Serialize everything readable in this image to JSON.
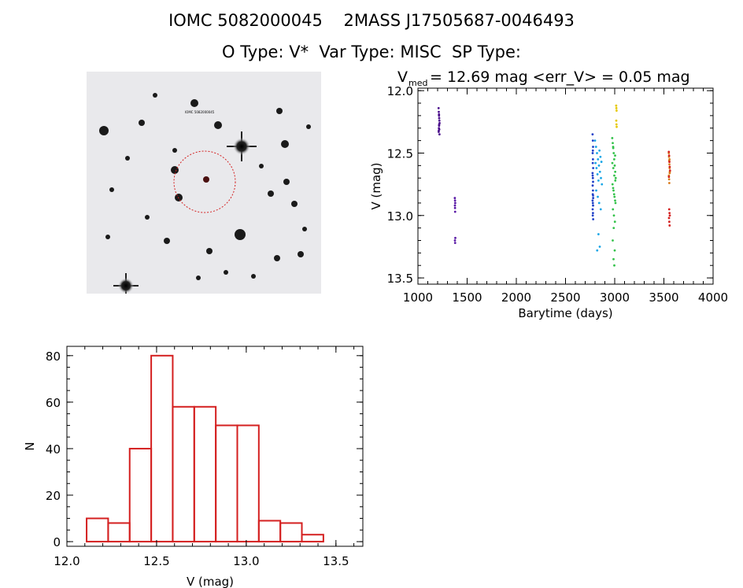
{
  "header": {
    "line1": "IOMC 5082000045    2MASS J17505687-0046493",
    "line2": "O Type: V*  Var Type: MISC  SP Type:"
  },
  "finder": {
    "star_label": "IOMC 5082000045"
  },
  "lightcurve": {
    "stat_prefix": "V",
    "stat_sub": "med",
    "stat_rest": " = 12.69 mag <err_V> = 0.05 mag"
  },
  "chart_data": [
    {
      "type": "scatter",
      "xlabel": "Barytime (days)",
      "ylabel": "V (mag)",
      "xlim": [
        1000,
        4000
      ],
      "ylim": [
        13.55,
        11.98
      ],
      "y_inverted": true,
      "xticks": [
        "1000",
        "1500",
        "2000",
        "2500",
        "3000",
        "3500",
        "4000"
      ],
      "yticks": [
        "12.0",
        "12.5",
        "13.0",
        "13.5"
      ],
      "series": [
        {
          "color": "#4b0f8c",
          "x": [
            1210,
            1212,
            1214,
            1216,
            1218,
            1220,
            1215,
            1213,
            1217,
            1211,
            1219,
            1214,
            1216,
            1212
          ],
          "y": [
            12.14,
            12.17,
            12.2,
            12.22,
            12.24,
            12.26,
            12.28,
            12.3,
            12.31,
            12.33,
            12.35,
            12.19,
            12.27,
            12.32
          ]
        },
        {
          "color": "#5a1aa6",
          "x": [
            1375,
            1377,
            1379,
            1376,
            1378,
            1380,
            1376,
            1378,
            1377
          ],
          "y": [
            12.86,
            12.88,
            12.9,
            12.92,
            12.97,
            13.18,
            13.2,
            13.22,
            12.94
          ]
        },
        {
          "color": "#1e3fc8",
          "x": [
            2775,
            2778,
            2780,
            2776,
            2779,
            2777,
            2781,
            2775,
            2778,
            2780,
            2776,
            2779,
            2777,
            2781,
            2775,
            2778,
            2780,
            2776,
            2779,
            2777,
            2781,
            2778,
            2776,
            2780
          ],
          "y": [
            12.35,
            12.4,
            12.45,
            12.5,
            12.55,
            12.58,
            12.62,
            12.66,
            12.7,
            12.73,
            12.76,
            12.8,
            12.83,
            12.86,
            12.88,
            12.9,
            12.92,
            12.95,
            12.98,
            13.0,
            13.03,
            12.48,
            12.68,
            12.84
          ]
        },
        {
          "color": "#1aa6e6",
          "x": [
            2800,
            2810,
            2820,
            2830,
            2840,
            2850,
            2860,
            2870,
            2805,
            2815,
            2825,
            2835,
            2845,
            2855,
            2865,
            2812,
            2828,
            2842,
            2858,
            2835,
            2848,
            2822
          ],
          "y": [
            12.4,
            12.45,
            12.5,
            12.55,
            12.6,
            12.65,
            12.7,
            12.75,
            12.58,
            12.62,
            12.67,
            12.72,
            12.48,
            12.53,
            12.57,
            12.8,
            12.85,
            12.9,
            12.95,
            13.15,
            13.25,
            13.28
          ]
        },
        {
          "color": "#33c24a",
          "x": [
            2975,
            2980,
            2985,
            2990,
            2995,
            3000,
            3005,
            3010,
            2978,
            2988,
            2998,
            3008,
            2982,
            2992,
            3002,
            2976,
            2986,
            2996,
            3006,
            2984,
            2994,
            3004,
            2990,
            2980,
            3000,
            2988,
            2996,
            2984,
            3004
          ],
          "y": [
            12.38,
            12.42,
            12.46,
            12.5,
            12.55,
            12.6,
            12.65,
            12.7,
            12.75,
            12.8,
            12.85,
            12.9,
            12.95,
            13.0,
            13.05,
            12.58,
            12.62,
            12.68,
            12.72,
            12.78,
            12.83,
            12.88,
            13.1,
            13.2,
            13.28,
            13.35,
            13.4,
            12.45,
            12.52
          ]
        },
        {
          "color": "#e6c800",
          "x": [
            3015,
            3017,
            3019,
            3016,
            3018,
            3020
          ],
          "y": [
            12.12,
            12.14,
            12.16,
            12.24,
            12.27,
            12.29
          ]
        },
        {
          "color": "#d97a1a",
          "x": [
            3550,
            3552,
            3554,
            3556,
            3558,
            3560,
            3551,
            3553,
            3555,
            3557,
            3559
          ],
          "y": [
            12.5,
            12.53,
            12.56,
            12.59,
            12.62,
            12.65,
            12.68,
            12.71,
            12.74,
            12.55,
            12.66
          ]
        },
        {
          "color": "#d42020",
          "x": [
            3550,
            3553,
            3556,
            3559,
            3562,
            3551,
            3554,
            3557,
            3560,
            3552,
            3555,
            3558
          ],
          "y": [
            12.49,
            12.52,
            12.57,
            12.61,
            12.64,
            12.69,
            12.95,
            12.98,
            13.0,
            13.02,
            13.05,
            13.08
          ]
        }
      ]
    },
    {
      "type": "bar",
      "xlabel": "V (mag)",
      "ylabel": "N",
      "xlim": [
        12.0,
        13.65
      ],
      "ylim": [
        -2,
        84
      ],
      "xticks": [
        "12.0",
        "12.5",
        "13.0",
        "13.5"
      ],
      "yticks": [
        "0",
        "20",
        "40",
        "60",
        "80"
      ],
      "bin_edges": [
        12.11,
        12.23,
        12.35,
        12.47,
        12.59,
        12.71,
        12.83,
        12.95,
        13.07,
        13.19,
        13.31,
        13.43
      ],
      "values": [
        10,
        8,
        40,
        80,
        58,
        58,
        50,
        50,
        9,
        8,
        3
      ]
    }
  ]
}
